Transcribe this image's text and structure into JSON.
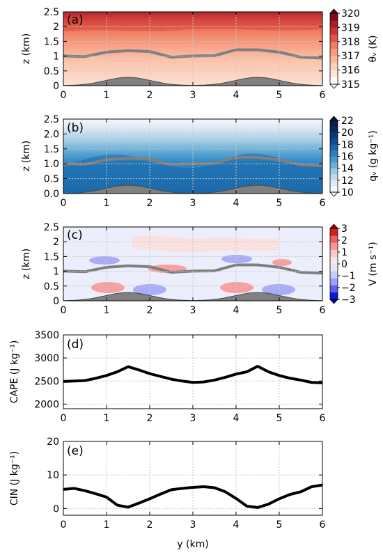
{
  "colors": {
    "ridge_fill": "#808080",
    "ridge_edge": "#4a4a4a",
    "pbl_line": "#7f7f7f",
    "series_line": "#000000",
    "grid": "#c8c8c8"
  },
  "panels": [
    {
      "label": "(a)",
      "ylabel": "z (km)",
      "cb_label": "θᵥ (K)",
      "cb_ticks": [
        "315",
        "316",
        "317",
        "318",
        "319",
        "320"
      ],
      "cb_colors": [
        "#ffffff",
        "#fde6da",
        "#fcd1bc",
        "#fbb99c",
        "#f79c7d",
        "#ee7e61",
        "#dd5647",
        "#c9353a",
        "#a91d2b",
        "#7d0a20"
      ],
      "cb_extend_low": "#ffffff",
      "cb_extend_high": "#5f0014",
      "field": "theta"
    },
    {
      "label": "(b)",
      "ylabel": "z (km)",
      "cb_label": "qᵥ (g kg⁻¹)",
      "cb_ticks": [
        "10",
        "12",
        "14",
        "16",
        "18",
        "20",
        "22"
      ],
      "cb_colors": [
        "#f4f9fe",
        "#deebf7",
        "#c6dbef",
        "#9ecae1",
        "#6baed6",
        "#4a98cb",
        "#2f7fbe",
        "#1a66a8",
        "#0b4d8f",
        "#083b74",
        "#082a5b",
        "#081d4a"
      ],
      "cb_extend_low": "#ffffff",
      "cb_extend_high": "#061538",
      "field": "qv"
    },
    {
      "label": "(c)",
      "ylabel": "z (km)",
      "cb_label": "V (m s⁻¹)",
      "cb_ticks": [
        "3",
        "2",
        "1",
        "0",
        "−1",
        "−2",
        "−3"
      ],
      "cb_colors": [
        "#1018d8",
        "#5b60f0",
        "#9da0f8",
        "#c9cbfb",
        "#e3e5fb",
        "#f7e6e6",
        "#fbc9c9",
        "#f79797",
        "#ef5f5f",
        "#d41c1c"
      ],
      "cb_extend_low": "#0000aa",
      "cb_extend_high": "#aa0000",
      "field": "v"
    }
  ],
  "chart_data": [
    {
      "type": "heatmap",
      "title": "",
      "panel": "(a)",
      "xlabel": "",
      "ylabel": "z (km)",
      "xlim": [
        0,
        6
      ],
      "ylim": [
        0,
        2.5
      ],
      "x_ticks": [
        "0",
        "1",
        "2",
        "3",
        "4",
        "5",
        "6"
      ],
      "y_ticks": [
        "0",
        "0.5",
        "1",
        "1.5",
        "2",
        "2.5"
      ],
      "colorbar": {
        "label": "θᵥ (K)",
        "range": [
          315,
          320
        ]
      },
      "pbl_height_km": {
        "x": [
          0,
          0.5,
          1,
          1.5,
          2,
          2.5,
          3,
          3.5,
          4,
          4.5,
          5,
          5.5,
          6
        ],
        "y": [
          0.97,
          1.02,
          1.1,
          1.22,
          1.12,
          1.0,
          0.97,
          1.05,
          1.18,
          1.25,
          1.1,
          1.0,
          0.9
        ]
      }
    },
    {
      "type": "heatmap",
      "title": "",
      "panel": "(b)",
      "xlabel": "",
      "ylabel": "z (km)",
      "xlim": [
        0,
        6
      ],
      "ylim": [
        0,
        2.5
      ],
      "x_ticks": [
        "0",
        "1",
        "2",
        "3",
        "4",
        "5",
        "6"
      ],
      "y_ticks": [
        "0.0",
        "0.5",
        "1.0",
        "1.5",
        "2.0",
        "2.5"
      ],
      "colorbar": {
        "label": "qᵥ (g kg⁻¹)",
        "range": [
          10,
          22
        ]
      },
      "pbl_height_km": {
        "x": [
          0,
          0.5,
          1,
          1.5,
          2,
          2.5,
          3,
          3.5,
          4,
          4.5,
          5,
          5.5,
          6
        ],
        "y": [
          0.97,
          1.02,
          1.1,
          1.22,
          1.12,
          1.0,
          0.97,
          1.05,
          1.18,
          1.25,
          1.1,
          1.0,
          0.9
        ]
      }
    },
    {
      "type": "heatmap",
      "title": "",
      "panel": "(c)",
      "xlabel": "",
      "ylabel": "z (km)",
      "xlim": [
        0,
        6
      ],
      "ylim": [
        0,
        2.5
      ],
      "x_ticks": [
        "0",
        "1",
        "2",
        "3",
        "4",
        "5",
        "6"
      ],
      "y_ticks": [
        "0",
        "0.5",
        "1",
        "1.5",
        "2",
        "2.5"
      ],
      "colorbar": {
        "label": "V (m s⁻¹)",
        "range": [
          -3,
          3
        ]
      },
      "pbl_height_km": {
        "x": [
          0,
          0.5,
          1,
          1.5,
          2,
          2.5,
          3,
          3.5,
          4,
          4.5,
          5,
          5.5,
          6
        ],
        "y": [
          0.97,
          1.02,
          1.1,
          1.22,
          1.12,
          1.0,
          0.97,
          1.05,
          1.18,
          1.25,
          1.1,
          1.0,
          0.9
        ]
      }
    },
    {
      "type": "line",
      "title": "",
      "panel": "(d)",
      "xlabel": "",
      "ylabel": "CAPE (J kg⁻¹)",
      "xlim": [
        0,
        6
      ],
      "ylim": [
        1900,
        3500
      ],
      "x_ticks": [
        "0",
        "1",
        "2",
        "3",
        "4",
        "5",
        "6"
      ],
      "y_ticks": [
        "2000",
        "2500",
        "3000",
        "3500"
      ],
      "y_tick_values": [
        2000,
        2500,
        3000,
        3500
      ],
      "grid": true,
      "x": [
        0,
        0.25,
        0.5,
        0.75,
        1.0,
        1.25,
        1.5,
        1.75,
        2.0,
        2.25,
        2.5,
        2.75,
        3.0,
        3.25,
        3.5,
        3.75,
        4.0,
        4.25,
        4.5,
        4.75,
        5.0,
        5.25,
        5.5,
        5.75,
        6.0
      ],
      "y": [
        2490,
        2500,
        2510,
        2560,
        2620,
        2700,
        2810,
        2740,
        2660,
        2600,
        2540,
        2500,
        2470,
        2480,
        2520,
        2580,
        2650,
        2700,
        2820,
        2700,
        2620,
        2560,
        2520,
        2470,
        2460
      ]
    },
    {
      "type": "line",
      "title": "",
      "panel": "(e)",
      "xlabel": "y (km)",
      "ylabel": "CIN (J kg⁻¹)",
      "xlim": [
        0,
        6
      ],
      "ylim": [
        -2,
        20
      ],
      "x_ticks": [
        "0",
        "1",
        "2",
        "3",
        "4",
        "5",
        "6"
      ],
      "y_ticks": [
        "0",
        "10",
        "20"
      ],
      "y_tick_values": [
        0,
        10,
        20
      ],
      "grid": true,
      "x": [
        0,
        0.25,
        0.5,
        0.75,
        1.0,
        1.25,
        1.5,
        1.75,
        2.0,
        2.25,
        2.5,
        2.75,
        3.0,
        3.25,
        3.5,
        3.75,
        4.0,
        4.25,
        4.5,
        4.75,
        5.0,
        5.25,
        5.5,
        5.75,
        6.0
      ],
      "y": [
        5.7,
        6.0,
        5.3,
        4.4,
        3.4,
        1.0,
        0.4,
        1.6,
        2.9,
        4.3,
        5.6,
        6.0,
        6.3,
        6.5,
        6.2,
        5.0,
        3.0,
        0.7,
        0.3,
        1.3,
        2.9,
        4.2,
        5.0,
        6.5,
        7.0
      ]
    }
  ]
}
